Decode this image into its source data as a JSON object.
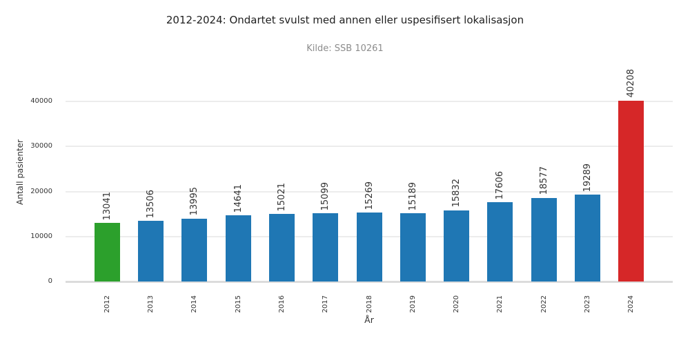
{
  "chart_data": {
    "type": "bar",
    "title": "2012-2024: Ondartet svulst med annen eller uspesifisert lokalisasjon",
    "subtitle": "Kilde: SSB 10261",
    "xlabel": "År",
    "ylabel": "Antall pasienter",
    "categories": [
      "2012",
      "2013",
      "2014",
      "2015",
      "2016",
      "2017",
      "2018",
      "2019",
      "2020",
      "2021",
      "2022",
      "2023",
      "2024"
    ],
    "values": [
      13041,
      13506,
      13995,
      14641,
      15021,
      15099,
      15269,
      15189,
      15832,
      17606,
      18577,
      19289,
      40208
    ],
    "bar_colors": [
      "#2ca02c",
      "#1f77b4",
      "#1f77b4",
      "#1f77b4",
      "#1f77b4",
      "#1f77b4",
      "#1f77b4",
      "#1f77b4",
      "#1f77b4",
      "#1f77b4",
      "#1f77b4",
      "#1f77b4",
      "#d62728"
    ],
    "value_labels": [
      "13041",
      "13506",
      "13995",
      "14641",
      "15021",
      "15099",
      "15269",
      "15189",
      "15832",
      "17606",
      "18577",
      "19289",
      "40208"
    ],
    "yticks": [
      0,
      10000,
      20000,
      30000,
      40000
    ],
    "ytick_labels": [
      "0",
      "10000",
      "20000",
      "30000",
      "40000"
    ],
    "ylim": [
      0,
      45000
    ],
    "grid": "horizontal",
    "legend": "none",
    "colors": {
      "highlight_first": "#2ca02c",
      "default_bar": "#1f77b4",
      "highlight_last": "#d62728",
      "gridline": "#ececec",
      "axis_line": "#dcdcdc",
      "subtitle_text": "#8c8c8c",
      "text": "#333333",
      "background": "#ffffff"
    }
  }
}
